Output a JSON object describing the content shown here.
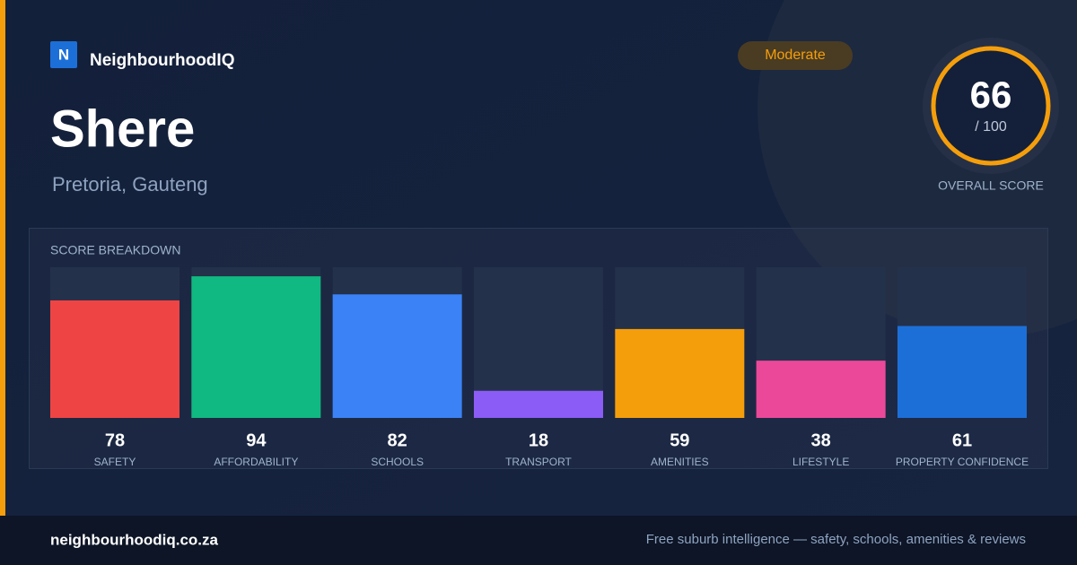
{
  "brand": {
    "logo": "N",
    "name": "NeighbourhoodIQ"
  },
  "badge": "Moderate",
  "suburb": "Shere",
  "location": "Pretoria, Gauteng",
  "overall": {
    "score": 66,
    "max_label": "/ 100",
    "label": "OVERALL SCORE"
  },
  "chart_data": {
    "type": "bar",
    "title": "SCORE BREAKDOWN",
    "categories": [
      "SAFETY",
      "AFFORDABILITY",
      "SCHOOLS",
      "TRANSPORT",
      "AMENITIES",
      "LIFESTYLE",
      "PROPERTY CONFIDENCE"
    ],
    "values": [
      78,
      94,
      82,
      18,
      59,
      38,
      61
    ],
    "colors": [
      "#ef4444",
      "#10b981",
      "#3b82f6",
      "#8b5cf6",
      "#f59e0b",
      "#ec4899",
      "#1d6fd8"
    ],
    "ylim": [
      0,
      100
    ]
  },
  "footer": {
    "url": "neighbourhoodiq.co.za",
    "tagline": "Free suburb intelligence — safety, schools, amenities & reviews"
  }
}
